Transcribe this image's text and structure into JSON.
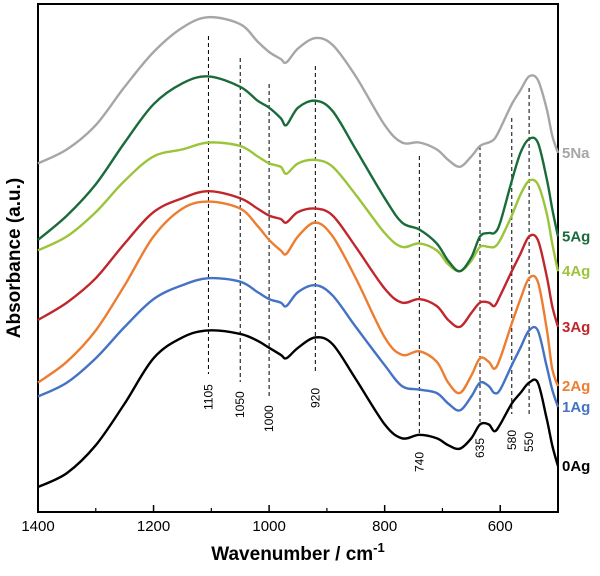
{
  "chart_data": {
    "type": "line",
    "xlabel": "Wavenumber / cm",
    "xlabel_sup": "-1",
    "ylabel": "Absorbance (a.u.)",
    "xlim": [
      1400,
      500
    ],
    "x_direction": "reversed",
    "x_ticks": [
      "1400",
      "1200",
      "1000",
      "800",
      "600"
    ],
    "y_ticks_shown": false,
    "grid": false,
    "legend": "series labels at right end of each curve",
    "annotations": [
      {
        "label": "1105",
        "x": 1105
      },
      {
        "label": "1050",
        "x": 1050
      },
      {
        "label": "1000",
        "x": 1000
      },
      {
        "label": "920",
        "x": 920
      },
      {
        "label": "740",
        "x": 740
      },
      {
        "label": "635",
        "x": 635
      },
      {
        "label": "580",
        "x": 580
      },
      {
        "label": "550",
        "x": 550
      }
    ],
    "series": [
      {
        "name": "0Ag",
        "color": "#000000",
        "x": [
          1400,
          1350,
          1300,
          1250,
          1200,
          1150,
          1105,
          1050,
          1020,
          1000,
          980,
          970,
          950,
          920,
          890,
          850,
          800,
          770,
          740,
          710,
          690,
          670,
          650,
          635,
          620,
          610,
          600,
          580,
          565,
          550,
          535,
          520,
          510,
          500
        ],
        "y": [
          0.0,
          0.04,
          0.12,
          0.24,
          0.37,
          0.43,
          0.45,
          0.44,
          0.42,
          0.4,
          0.38,
          0.37,
          0.4,
          0.43,
          0.41,
          0.31,
          0.18,
          0.14,
          0.15,
          0.14,
          0.12,
          0.11,
          0.14,
          0.18,
          0.18,
          0.16,
          0.18,
          0.24,
          0.27,
          0.3,
          0.3,
          0.2,
          0.12,
          0.06
        ]
      },
      {
        "name": "1Ag",
        "color": "#4472c4",
        "x": [
          1400,
          1350,
          1300,
          1250,
          1200,
          1150,
          1105,
          1050,
          1020,
          1000,
          980,
          970,
          950,
          920,
          890,
          850,
          800,
          770,
          740,
          710,
          690,
          670,
          650,
          635,
          620,
          610,
          600,
          580,
          565,
          550,
          535,
          520,
          510,
          500
        ],
        "y": [
          0.26,
          0.3,
          0.37,
          0.46,
          0.54,
          0.58,
          0.6,
          0.59,
          0.56,
          0.54,
          0.53,
          0.52,
          0.56,
          0.58,
          0.55,
          0.46,
          0.35,
          0.29,
          0.28,
          0.27,
          0.24,
          0.22,
          0.26,
          0.3,
          0.29,
          0.27,
          0.28,
          0.35,
          0.4,
          0.45,
          0.45,
          0.35,
          0.28,
          0.23
        ]
      },
      {
        "name": "2Ag",
        "color": "#ed7d31",
        "x": [
          1400,
          1350,
          1300,
          1250,
          1200,
          1150,
          1105,
          1050,
          1020,
          1000,
          980,
          970,
          950,
          920,
          890,
          850,
          800,
          770,
          740,
          710,
          690,
          670,
          650,
          635,
          620,
          610,
          600,
          580,
          565,
          550,
          535,
          520,
          510,
          500
        ],
        "y": [
          0.3,
          0.36,
          0.45,
          0.58,
          0.72,
          0.8,
          0.82,
          0.8,
          0.75,
          0.71,
          0.68,
          0.67,
          0.72,
          0.76,
          0.72,
          0.6,
          0.43,
          0.38,
          0.39,
          0.36,
          0.3,
          0.27,
          0.32,
          0.37,
          0.36,
          0.34,
          0.37,
          0.47,
          0.54,
          0.6,
          0.59,
          0.46,
          0.34,
          0.29
        ]
      },
      {
        "name": "3Ag",
        "color": "#c0272d",
        "x": [
          1400,
          1350,
          1300,
          1250,
          1200,
          1150,
          1105,
          1050,
          1020,
          1000,
          980,
          970,
          950,
          920,
          890,
          850,
          800,
          770,
          740,
          710,
          690,
          670,
          650,
          635,
          620,
          610,
          600,
          580,
          565,
          550,
          535,
          520,
          510,
          500
        ],
        "y": [
          0.48,
          0.53,
          0.6,
          0.7,
          0.79,
          0.83,
          0.85,
          0.83,
          0.8,
          0.78,
          0.77,
          0.76,
          0.79,
          0.8,
          0.78,
          0.69,
          0.57,
          0.53,
          0.54,
          0.52,
          0.48,
          0.46,
          0.5,
          0.53,
          0.53,
          0.52,
          0.55,
          0.62,
          0.67,
          0.72,
          0.71,
          0.61,
          0.52,
          0.46
        ]
      },
      {
        "name": "4Ag",
        "color": "#9bc43b",
        "x": [
          1400,
          1350,
          1300,
          1250,
          1200,
          1150,
          1105,
          1050,
          1020,
          1000,
          980,
          970,
          950,
          920,
          890,
          850,
          800,
          770,
          740,
          710,
          690,
          670,
          650,
          635,
          620,
          610,
          600,
          580,
          565,
          550,
          535,
          520,
          510,
          500
        ],
        "y": [
          0.68,
          0.72,
          0.79,
          0.88,
          0.95,
          0.97,
          0.99,
          0.98,
          0.95,
          0.93,
          0.92,
          0.9,
          0.93,
          0.94,
          0.92,
          0.84,
          0.73,
          0.69,
          0.7,
          0.68,
          0.64,
          0.62,
          0.65,
          0.69,
          0.69,
          0.69,
          0.71,
          0.78,
          0.84,
          0.88,
          0.87,
          0.79,
          0.7,
          0.62
        ]
      },
      {
        "name": "5Ag",
        "color": "#1a6b3a",
        "x": [
          1400,
          1350,
          1300,
          1250,
          1200,
          1150,
          1105,
          1050,
          1020,
          1000,
          980,
          970,
          950,
          920,
          890,
          850,
          800,
          770,
          740,
          710,
          690,
          670,
          650,
          635,
          620,
          610,
          600,
          580,
          565,
          550,
          535,
          520,
          510,
          500
        ],
        "y": [
          0.71,
          0.78,
          0.87,
          0.99,
          1.1,
          1.16,
          1.18,
          1.15,
          1.11,
          1.09,
          1.06,
          1.04,
          1.09,
          1.11,
          1.08,
          0.97,
          0.83,
          0.76,
          0.74,
          0.7,
          0.65,
          0.62,
          0.66,
          0.72,
          0.73,
          0.73,
          0.76,
          0.88,
          0.96,
          1.0,
          0.99,
          0.89,
          0.8,
          0.72
        ]
      },
      {
        "name": "5Na",
        "color": "#a6a6a6",
        "x": [
          1400,
          1350,
          1300,
          1250,
          1200,
          1150,
          1105,
          1050,
          1020,
          1000,
          980,
          970,
          950,
          920,
          890,
          850,
          800,
          770,
          740,
          710,
          690,
          670,
          650,
          635,
          620,
          610,
          600,
          580,
          565,
          550,
          535,
          520,
          510,
          500
        ],
        "y": [
          0.93,
          0.97,
          1.04,
          1.15,
          1.25,
          1.32,
          1.35,
          1.33,
          1.28,
          1.25,
          1.23,
          1.22,
          1.26,
          1.29,
          1.27,
          1.18,
          1.04,
          0.99,
          0.99,
          0.97,
          0.94,
          0.92,
          0.95,
          0.98,
          0.99,
          1.0,
          1.03,
          1.1,
          1.14,
          1.18,
          1.17,
          1.09,
          1.01,
          0.96
        ]
      }
    ]
  }
}
